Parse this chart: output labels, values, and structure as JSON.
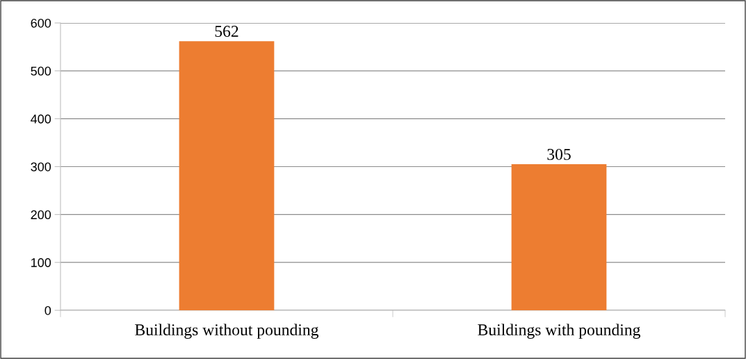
{
  "chart_data": {
    "type": "bar",
    "categories": [
      "Buildings without pounding",
      "Buildings with pounding"
    ],
    "values": [
      562,
      305
    ],
    "color": "#ed7d31",
    "ylim": [
      0,
      600
    ],
    "yticks": [
      0,
      100,
      200,
      300,
      400,
      500,
      600
    ],
    "grid": "y",
    "data_labels": true
  }
}
